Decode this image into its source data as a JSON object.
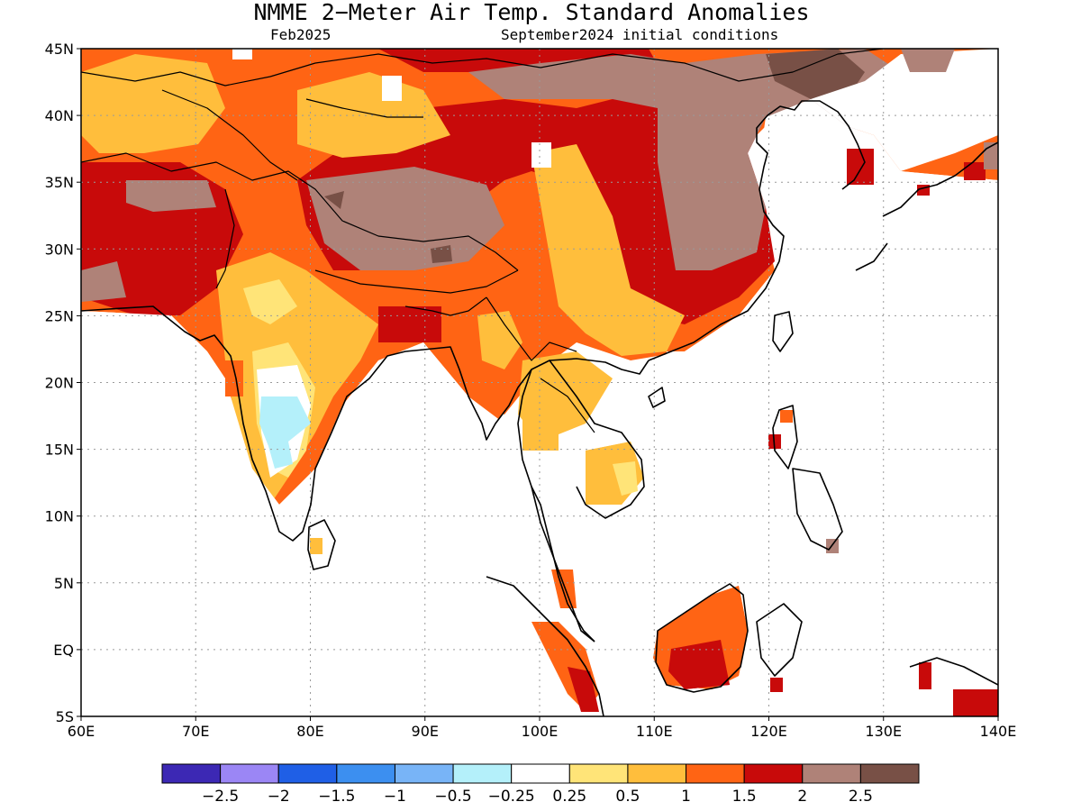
{
  "header": {
    "title": "NMME 2−Meter Air Temp. Standard Anomalies",
    "valid_month": "Feb2025",
    "initial_conditions": "September2024 initial conditions"
  },
  "map_axes": {
    "lon_labels": [
      "60E",
      "70E",
      "80E",
      "90E",
      "100E",
      "110E",
      "120E",
      "130E",
      "140E"
    ],
    "lat_labels": [
      "45N",
      "40N",
      "35N",
      "30N",
      "25N",
      "20N",
      "15N",
      "10N",
      "5N",
      "EQ",
      "5S"
    ],
    "lon_range": [
      60,
      140
    ],
    "lat_range": [
      -5,
      45
    ],
    "grid": "dotted"
  },
  "colorbar": {
    "colors": [
      "#3c28b4",
      "#9b86f5",
      "#1f5fe6",
      "#3c8ff0",
      "#78b4f7",
      "#b4f0fa",
      "#ffffff",
      "#ffe478",
      "#ffbe3c",
      "#ff6414",
      "#c80a0a",
      "#af8278",
      "#785046"
    ],
    "labels": [
      "−2.5",
      "−2",
      "−1.5",
      "−1",
      "−0.5",
      "−0.25",
      "0.25",
      "0.5",
      "1",
      "1.5",
      "2",
      "2.5"
    ]
  }
}
